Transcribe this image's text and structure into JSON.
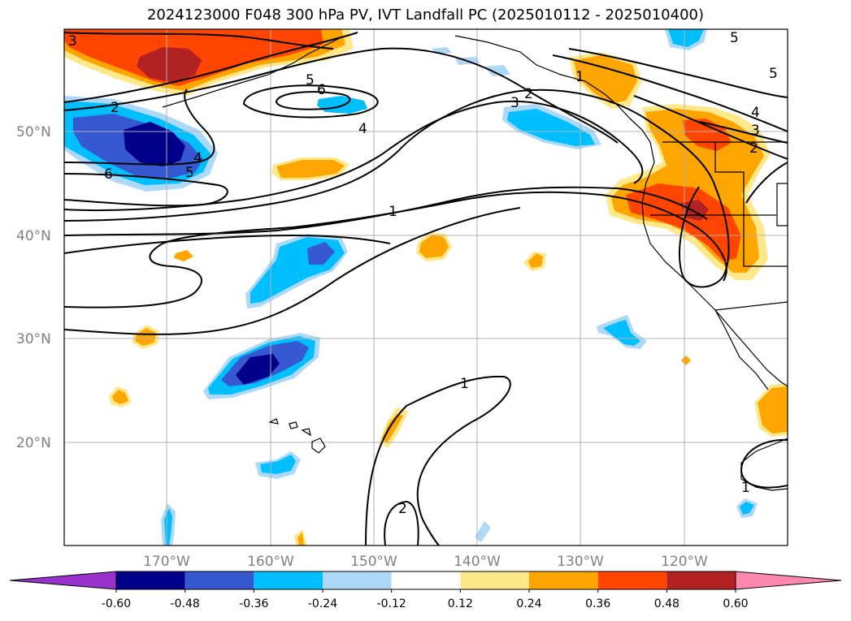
{
  "title": "2024123000 F048 300 hPa PV, IVT Landfall PC (2025010112 - 2025010400)",
  "lat_labels": [
    "50°N",
    "40°N",
    "30°N",
    "20°N"
  ],
  "lon_labels": [
    "170°W",
    "160°W",
    "150°W",
    "140°W",
    "130°W",
    "120°W"
  ],
  "colorbar": {
    "ticks": [
      "-0.60",
      "-0.48",
      "-0.36",
      "-0.24",
      "-0.12",
      "0.12",
      "0.24",
      "0.36",
      "0.48",
      "0.60"
    ],
    "colors": [
      "#9932cc",
      "#00008b",
      "#3658d0",
      "#00bfff",
      "#add8f7",
      "#ffffff",
      "#ffe88a",
      "#ffa500",
      "#ff4500",
      "#b22222",
      "#ff88b0"
    ]
  },
  "contour_labels": [
    "3",
    "2",
    "5",
    "6",
    "4",
    "6",
    "5",
    "4",
    "1",
    "2",
    "3",
    "1",
    "4",
    "3",
    "2",
    "5",
    "5",
    "1",
    "2",
    "1"
  ],
  "colors": {
    "dark_blue": "#00008b",
    "mid_blue": "#3658d0",
    "sky_blue": "#00bfff",
    "light_blue": "#add8f7",
    "light_yellow": "#ffe88a",
    "orange": "#ffa500",
    "red_orange": "#ff4500",
    "dark_red": "#b22222"
  }
}
